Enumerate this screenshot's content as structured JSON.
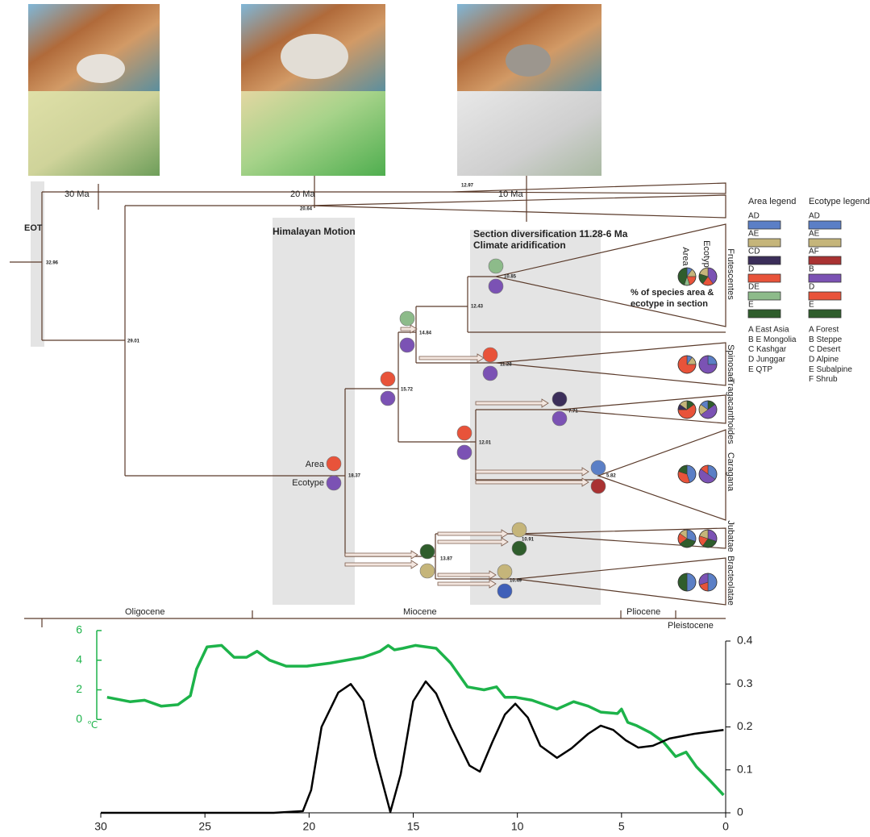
{
  "timescale": [
    "30 Ma",
    "20 Ma",
    "10 Ma"
  ],
  "annotations": {
    "eot": "EOT",
    "himalaya": "Himalayan Motion",
    "diversification": "Section diversification 11.28-6 Ma",
    "aridification": "Climate aridification",
    "pie_note": [
      "% of species area &",
      "ecotype in section"
    ],
    "pie_area": "Area",
    "pie_ecotype": "Ecotype",
    "node_area": "Area",
    "node_ecotype": "Ecotype"
  },
  "clades": [
    "Frutescentes",
    "Spinosae",
    "Tragacanthoides",
    "Caragana",
    "Jubatae",
    "Bracteolatae"
  ],
  "node_ages": [
    "32.96",
    "29.01",
    "20.64",
    "12.97",
    "18.37",
    "15.72",
    "14.84",
    "12.43",
    "10.85",
    "11.28",
    "12.01",
    "7.71",
    "5.82",
    "13.87",
    "10.91",
    "10.49"
  ],
  "nodes": [
    {
      "area_color": "#8dbb8a",
      "ecotype_color": "#7b52b4"
    },
    {
      "area_color": "#8dbb8a",
      "ecotype_color": "#7b52b4"
    },
    {
      "area_color": "#e8533a",
      "ecotype_color": "#7b52b4"
    },
    {
      "area_color": "#e8533a",
      "ecotype_color": "#7b52b4"
    },
    {
      "area_color": "#3b2e5a",
      "ecotype_color": "#7b52b4"
    },
    {
      "area_color": "#e8533a",
      "ecotype_color": "#7b52b4"
    },
    {
      "area_color": "#5b7fc6",
      "ecotype_color": "#a93232"
    },
    {
      "area_color": "#e8533a",
      "ecotype_color": "#7b52b4"
    },
    {
      "area_color": "#c5b57a",
      "ecotype_color": "#2f5d2c"
    },
    {
      "area_color": "#2f5d2c",
      "ecotype_color": "#c5b57a"
    },
    {
      "area_color": "#c5b57a",
      "ecotype_color": "#3f5fb8"
    }
  ],
  "area_legend": {
    "title": "Area legend",
    "items": [
      {
        "code": "AD",
        "color": "#5b7fc6"
      },
      {
        "code": "AE",
        "color": "#c5b57a"
      },
      {
        "code": "CD",
        "color": "#3b2e5a"
      },
      {
        "code": "D",
        "color": "#e8533a"
      },
      {
        "code": "DE",
        "color": "#8dbb8a"
      },
      {
        "code": "E",
        "color": "#2f5d2c"
      }
    ],
    "key": [
      "A East Asia",
      "B E Mongolia",
      "C Kashgar",
      "D Junggar",
      "E QTP"
    ]
  },
  "ecotype_legend": {
    "title": "Ecotype legend",
    "items": [
      {
        "code": "AD",
        "color": "#5b7fc6"
      },
      {
        "code": "AE",
        "color": "#c5b57a"
      },
      {
        "code": "AF",
        "color": "#a93232"
      },
      {
        "code": "B",
        "color": "#7b52b4"
      },
      {
        "code": "D",
        "color": "#e8533a"
      },
      {
        "code": "E",
        "color": "#2f5d2c"
      }
    ],
    "key": [
      "A Forest",
      "B Steppe",
      "C Desert",
      "D Alpine",
      "E Subalpine",
      "F Shrub"
    ]
  },
  "pies": [
    {
      "area": [
        {
          "color": "#5b7fc6",
          "value": 10
        },
        {
          "color": "#c5b57a",
          "value": 15
        },
        {
          "color": "#e8533a",
          "value": 20
        },
        {
          "color": "#8dbb8a",
          "value": 10
        },
        {
          "color": "#2f5d2c",
          "value": 45
        }
      ],
      "ecotype": [
        {
          "color": "#7b52b4",
          "value": 40
        },
        {
          "color": "#e8533a",
          "value": 20
        },
        {
          "color": "#2f5d2c",
          "value": 20
        },
        {
          "color": "#c5b57a",
          "value": 20
        }
      ]
    },
    {
      "area": [
        {
          "color": "#5b7fc6",
          "value": 10
        },
        {
          "color": "#c5b57a",
          "value": 15
        },
        {
          "color": "#e8533a",
          "value": 75
        }
      ],
      "ecotype": [
        {
          "color": "#5b7fc6",
          "value": 25
        },
        {
          "color": "#7b52b4",
          "value": 75
        }
      ]
    },
    {
      "area": [
        {
          "color": "#2f5d2c",
          "value": 15
        },
        {
          "color": "#e8533a",
          "value": 60
        },
        {
          "color": "#3b2e5a",
          "value": 10
        },
        {
          "color": "#c5b57a",
          "value": 15
        }
      ],
      "ecotype": [
        {
          "color": "#2f5d2c",
          "value": 15
        },
        {
          "color": "#7b52b4",
          "value": 50
        },
        {
          "color": "#c5b57a",
          "value": 20
        },
        {
          "color": "#5b7fc6",
          "value": 15
        }
      ]
    },
    {
      "area": [
        {
          "color": "#5b7fc6",
          "value": 45
        },
        {
          "color": "#e8533a",
          "value": 35
        },
        {
          "color": "#2f5d2c",
          "value": 20
        }
      ],
      "ecotype": [
        {
          "color": "#5b7fc6",
          "value": 35
        },
        {
          "color": "#7b52b4",
          "value": 50
        },
        {
          "color": "#e8533a",
          "value": 15
        }
      ]
    },
    {
      "area": [
        {
          "color": "#5b7fc6",
          "value": 30
        },
        {
          "color": "#2f5d2c",
          "value": 35
        },
        {
          "color": "#e8533a",
          "value": 20
        },
        {
          "color": "#c5b57a",
          "value": 15
        }
      ],
      "ecotype": [
        {
          "color": "#7b52b4",
          "value": 30
        },
        {
          "color": "#2f5d2c",
          "value": 30
        },
        {
          "color": "#e8533a",
          "value": 20
        },
        {
          "color": "#c5b57a",
          "value": 20
        }
      ]
    },
    {
      "area": [
        {
          "color": "#5b7fc6",
          "value": 50
        },
        {
          "color": "#2f5d2c",
          "value": 50
        }
      ],
      "ecotype": [
        {
          "color": "#5b7fc6",
          "value": 50
        },
        {
          "color": "#e8533a",
          "value": 20
        },
        {
          "color": "#7b52b4",
          "value": 30
        }
      ]
    }
  ],
  "epochs": [
    "Oligocene",
    "Miocene",
    "Pliocene",
    "Pleistocene"
  ],
  "chart_data": {
    "type": "line",
    "y_label": "℃",
    "xlim": [
      30,
      0
    ],
    "xticks": [
      30,
      25,
      20,
      15,
      10,
      5,
      0
    ],
    "ylim": [
      -6.3,
      6
    ],
    "yticks": [
      0,
      2,
      4,
      6
    ],
    "y2lim": [
      0,
      0.4
    ],
    "y2ticks": [
      0,
      0.1,
      0.2,
      0.3,
      0.4
    ],
    "series": [
      {
        "color": "#1db34a",
        "axis": "y",
        "x": [
          29.7,
          28.6,
          27.9,
          27.1,
          26.3,
          25.7,
          25.4,
          24.9,
          24.2,
          23.6,
          23.0,
          22.5,
          21.9,
          21.1,
          20.1,
          19.0,
          17.4,
          16.6,
          16.2,
          15.9,
          15.5,
          14.9,
          13.9,
          13.2,
          12.4,
          11.6,
          11.0,
          10.6,
          10.1,
          9.3,
          8.1,
          7.3,
          6.6,
          6.0,
          5.2,
          5.0,
          4.7,
          4.3,
          3.6,
          3.0,
          2.4,
          1.9,
          1.4,
          0.7,
          0.1
        ],
        "values": [
          1.5,
          1.2,
          1.3,
          0.9,
          1.0,
          1.6,
          3.4,
          4.9,
          5.0,
          4.2,
          4.2,
          4.6,
          4.0,
          3.6,
          3.6,
          3.8,
          4.2,
          4.6,
          5.0,
          4.7,
          4.8,
          5.0,
          4.8,
          3.8,
          2.2,
          2.0,
          2.2,
          1.5,
          1.5,
          1.3,
          0.7,
          1.2,
          0.9,
          0.5,
          0.4,
          0.7,
          -0.2,
          -0.4,
          -0.9,
          -1.5,
          -2.5,
          -2.2,
          -3.2,
          -4.2,
          -5.1
        ]
      },
      {
        "color": "#000000",
        "axis": "y2",
        "x": [
          30.0,
          21.7,
          20.3,
          19.9,
          19.4,
          18.6,
          18.0,
          17.4,
          16.8,
          16.1,
          15.6,
          15.0,
          14.4,
          13.9,
          13.2,
          12.3,
          11.8,
          11.2,
          10.6,
          10.1,
          9.5,
          8.9,
          8.1,
          7.4,
          6.6,
          6.0,
          5.4,
          4.8,
          4.2,
          3.5,
          2.7,
          1.5,
          0.1
        ],
        "values": [
          0,
          0,
          0.004,
          0.053,
          0.2,
          0.28,
          0.3,
          0.26,
          0.13,
          0.002,
          0.09,
          0.26,
          0.306,
          0.278,
          0.2,
          0.11,
          0.096,
          0.165,
          0.229,
          0.254,
          0.222,
          0.156,
          0.128,
          0.15,
          0.184,
          0.203,
          0.193,
          0.169,
          0.152,
          0.156,
          0.173,
          0.184,
          0.193
        ]
      }
    ]
  }
}
